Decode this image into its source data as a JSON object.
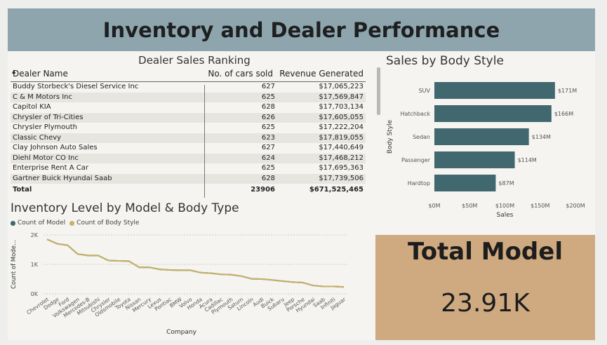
{
  "header": {
    "title": "Inventory and Dealer Performance"
  },
  "dealer_table": {
    "title": "Dealer Sales Ranking",
    "columns": [
      "Dealer Name",
      "No. of cars sold",
      "Revenue Generated"
    ],
    "rows": [
      [
        "Buddy Storbeck's Diesel Service Inc",
        "627",
        "$17,065,223"
      ],
      [
        "C & M Motors Inc",
        "625",
        "$17,569,847"
      ],
      [
        "Capitol KIA",
        "628",
        "$17,703,134"
      ],
      [
        "Chrysler of Tri-Cities",
        "626",
        "$17,605,055"
      ],
      [
        "Chrysler Plymouth",
        "625",
        "$17,222,204"
      ],
      [
        "Classic Chevy",
        "623",
        "$17,819,055"
      ],
      [
        "Clay Johnson Auto Sales",
        "627",
        "$17,440,649"
      ],
      [
        "Diehl Motor CO Inc",
        "624",
        "$17,468,212"
      ],
      [
        "Enterprise Rent A Car",
        "625",
        "$17,695,363"
      ],
      [
        "Gartner Buick Hyundai Saab",
        "628",
        "$17,739,506"
      ]
    ],
    "total": [
      "Total",
      "23906",
      "$671,525,465"
    ]
  },
  "chart_data": [
    {
      "type": "bar",
      "title": "Sales by Body Style",
      "orientation": "horizontal",
      "categories": [
        "SUV",
        "Hatchback",
        "Sedan",
        "Passenger",
        "Hardtop"
      ],
      "values": [
        171,
        166,
        134,
        114,
        87
      ],
      "data_labels": [
        "$171M",
        "$166M",
        "$134M",
        "$114M",
        "$87M"
      ],
      "x_ticks": [
        "$0M",
        "$50M",
        "$100M",
        "$150M",
        "$200M"
      ],
      "xlim": [
        0,
        200
      ],
      "xlabel": "Sales",
      "ylabel": "Body Style",
      "color": "#40686e"
    },
    {
      "type": "line",
      "title": "Inventory Level by Model & Body Type",
      "categories": [
        "Chevrolet",
        "Dodge",
        "Ford",
        "Volkswagen",
        "Mercedes-B",
        "Mitsubishi",
        "Chrysler",
        "Oldsmobile",
        "Toyota",
        "Nissan",
        "Mercury",
        "Lexus",
        "Pontiac",
        "BMW",
        "Volvo",
        "Honda",
        "Acura",
        "Cadillac",
        "Plymouth",
        "Saturn",
        "Lincoln",
        "Audi",
        "Buick",
        "Subaru",
        "Jeep",
        "Porsche",
        "Hyundai",
        "Saab",
        "Infiniti",
        "Jaguar"
      ],
      "series": [
        {
          "name": "Count of Model",
          "color": "#40686e",
          "values": [
            1850,
            1700,
            1650,
            1350,
            1300,
            1300,
            1130,
            1120,
            1110,
            900,
            900,
            830,
            810,
            800,
            800,
            720,
            700,
            660,
            650,
            600,
            510,
            500,
            470,
            430,
            400,
            380,
            280,
            250,
            250,
            230
          ]
        },
        {
          "name": "Count of Body Style",
          "color": "#c6b166",
          "values": [
            1850,
            1700,
            1650,
            1350,
            1300,
            1300,
            1130,
            1120,
            1110,
            900,
            900,
            830,
            810,
            800,
            800,
            720,
            700,
            660,
            650,
            600,
            510,
            500,
            470,
            430,
            400,
            380,
            280,
            250,
            250,
            230
          ]
        }
      ],
      "y_ticks": [
        "0K",
        "1K",
        "2K"
      ],
      "ylim": [
        0,
        2000
      ],
      "xlabel": "Company",
      "ylabel": "Count of Mode...",
      "grid": true,
      "legend": "top-left"
    }
  ],
  "kpi": {
    "title": "Total Model",
    "value": "23.91K"
  }
}
